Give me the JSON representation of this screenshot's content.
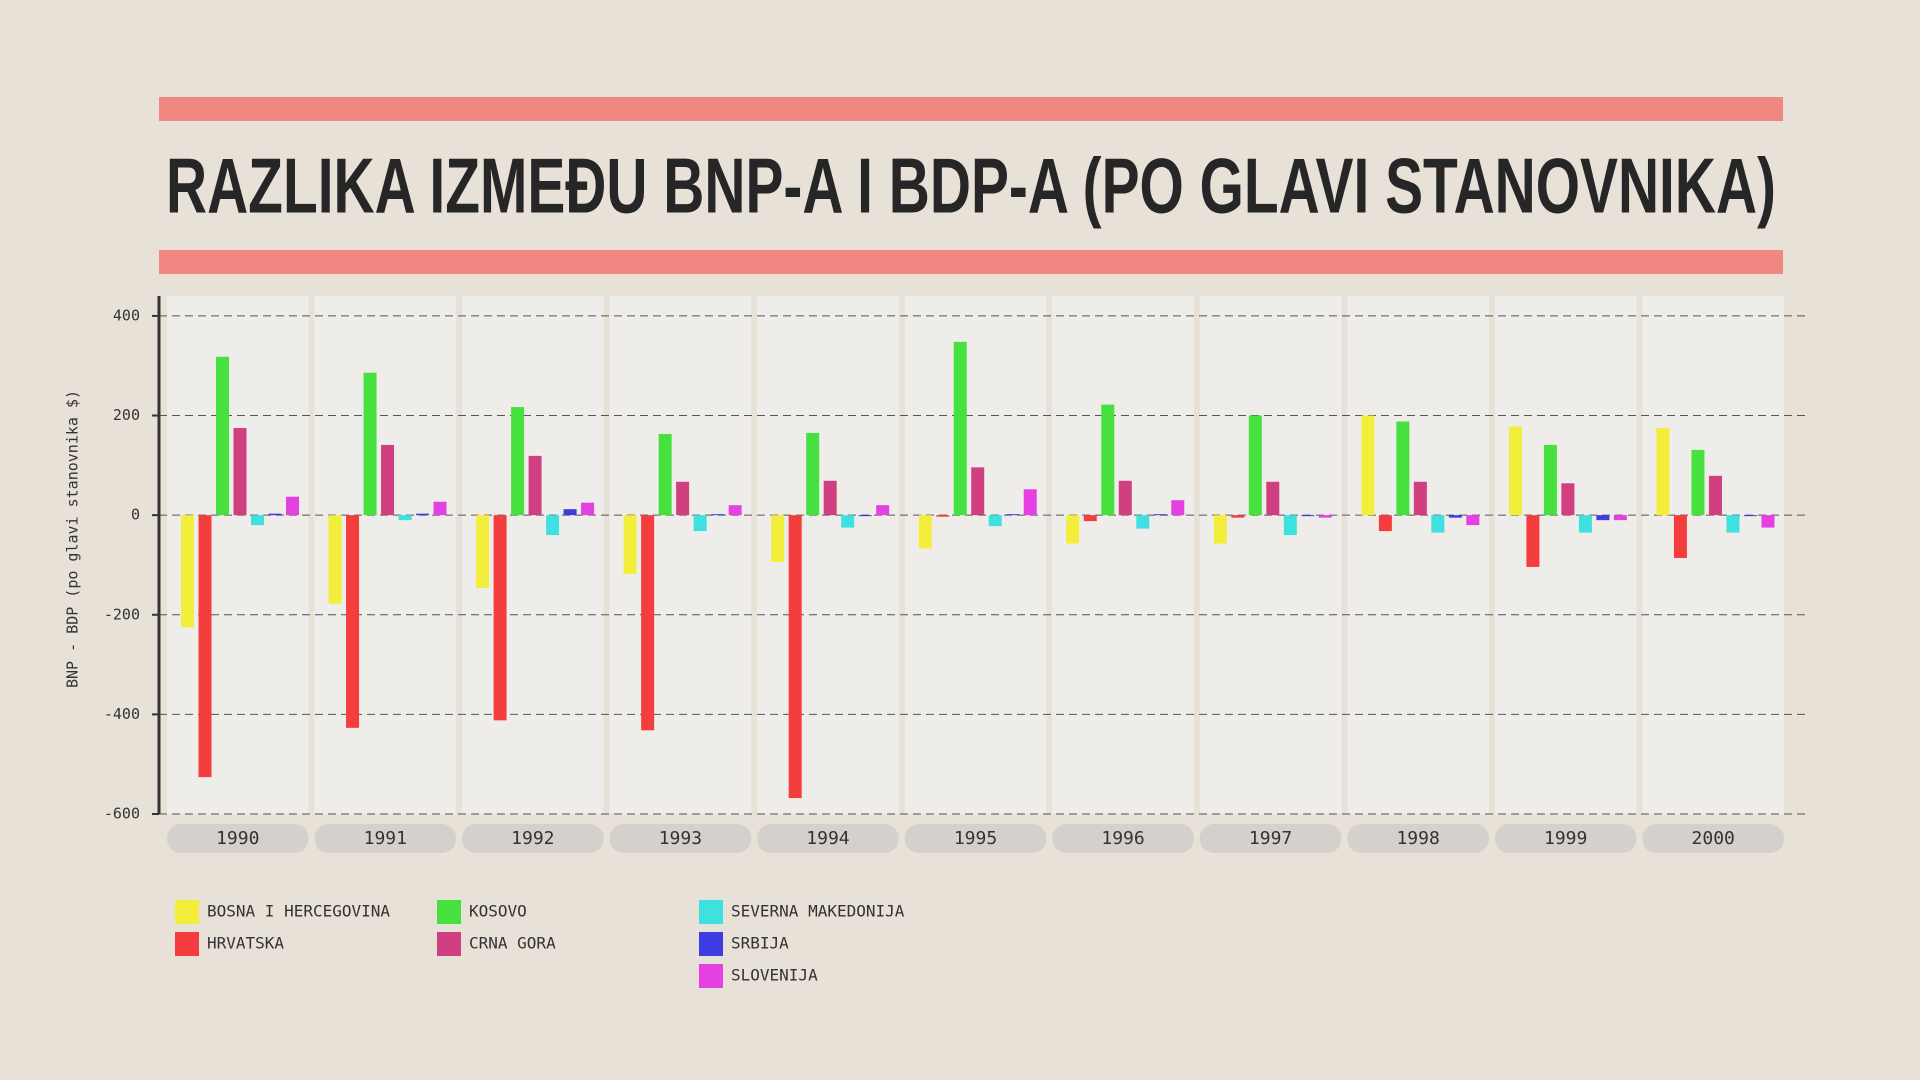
{
  "chart_data": {
    "type": "bar",
    "title": "RAZLIKA IZMEĐU BNP-A I BDP-A (PO GLAVI STANOVNIKA)",
    "y_label": "BNP - BDP (po glavi stanovnika $)",
    "categories": [
      "1990",
      "1991",
      "1992",
      "1993",
      "1994",
      "1995",
      "1996",
      "1997",
      "1998",
      "1999",
      "2000"
    ],
    "series": [
      {
        "name": "BOSNA I HERCEGOVINA",
        "color": "#f3ee3c",
        "values": [
          -225,
          -178,
          -146,
          -118,
          -94,
          -67,
          -57,
          -57,
          200,
          178,
          175
        ]
      },
      {
        "name": "HRVATSKA",
        "color": "#f43e3e",
        "values": [
          -526,
          -427,
          -412,
          -432,
          -568,
          -3,
          -12,
          -5,
          -32,
          -104,
          -86
        ]
      },
      {
        "name": "KOSOVO",
        "color": "#46e03f",
        "values": [
          318,
          286,
          217,
          163,
          165,
          348,
          222,
          200,
          188,
          141,
          131
        ]
      },
      {
        "name": "CRNA GORA",
        "color": "#d03f80",
        "values": [
          175,
          141,
          119,
          67,
          69,
          96,
          69,
          67,
          67,
          64,
          79
        ]
      },
      {
        "name": "SEVERNA MAKEDONIJA",
        "color": "#3fe0e0",
        "values": [
          -20,
          -10,
          -40,
          -32,
          -25,
          -22,
          -27,
          -40,
          -35,
          -35,
          -35
        ]
      },
      {
        "name": "SRBIJA",
        "color": "#3c3ce0",
        "values": [
          3,
          3,
          12,
          2,
          -2,
          2,
          2,
          -2,
          -5,
          -10,
          -2
        ]
      },
      {
        "name": "SLOVENIJA",
        "color": "#e540e2",
        "values": [
          37,
          27,
          25,
          20,
          20,
          52,
          30,
          -5,
          -20,
          -10,
          -25
        ]
      }
    ],
    "ylim": [
      -600,
      440
    ],
    "yticks": [
      -600,
      -400,
      -200,
      0,
      200,
      400
    ],
    "grid": true
  }
}
